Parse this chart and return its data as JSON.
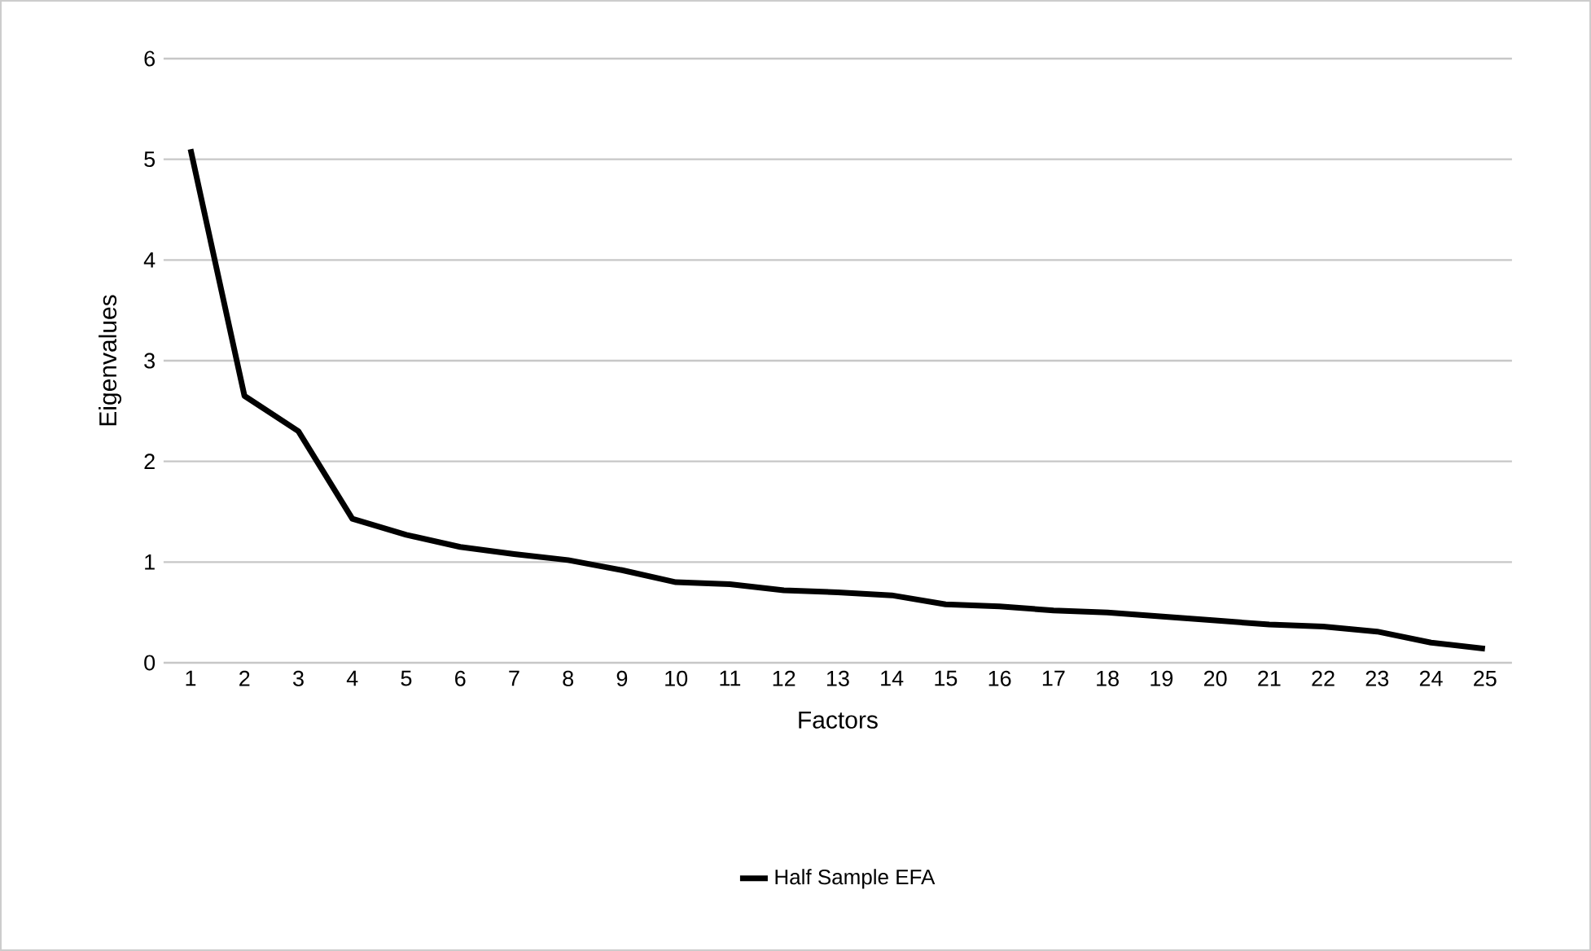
{
  "chart_data": {
    "type": "line",
    "xlabel": "Factors",
    "ylabel": "Eigenvalues",
    "categories": [
      "1",
      "2",
      "3",
      "4",
      "5",
      "6",
      "7",
      "8",
      "9",
      "10",
      "11",
      "12",
      "13",
      "14",
      "15",
      "16",
      "17",
      "18",
      "19",
      "20",
      "21",
      "22",
      "23",
      "24",
      "25"
    ],
    "series": [
      {
        "name": "Half Sample EFA",
        "color": "#000000",
        "values": [
          5.1,
          2.65,
          2.3,
          1.43,
          1.27,
          1.15,
          1.08,
          1.02,
          0.92,
          0.8,
          0.78,
          0.72,
          0.7,
          0.67,
          0.58,
          0.56,
          0.52,
          0.5,
          0.46,
          0.42,
          0.38,
          0.36,
          0.31,
          0.2,
          0.14
        ]
      }
    ],
    "ylim": [
      0,
      6
    ],
    "yticks": [
      0,
      1,
      2,
      3,
      4,
      5,
      6
    ],
    "grid": "y",
    "legend": "bottom",
    "line_style": "solid"
  }
}
